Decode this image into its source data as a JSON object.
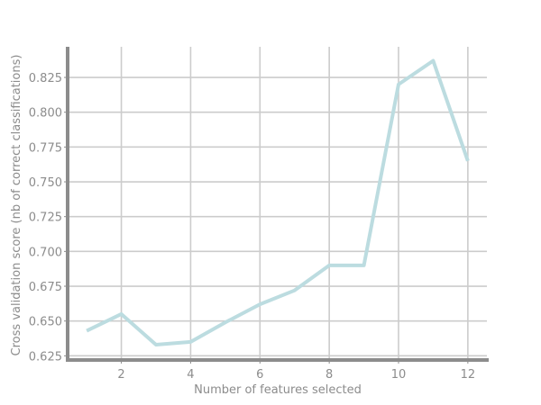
{
  "chart_data": {
    "type": "line",
    "xlabel": "Number of features selected",
    "ylabel": "Cross validation score (nb of correct classifications)",
    "x": [
      1,
      2,
      3,
      4,
      5,
      6,
      7,
      8,
      9,
      10,
      11,
      12
    ],
    "series": [
      {
        "values": [
          0.643,
          0.655,
          0.633,
          0.635,
          0.649,
          0.662,
          0.672,
          0.69,
          0.69,
          0.82,
          0.837,
          0.765
        ]
      }
    ],
    "xlim": [
      0.45,
      12.55
    ],
    "ylim": [
      0.622,
      0.847
    ],
    "xticks": [
      2,
      4,
      6,
      8,
      10,
      12
    ],
    "yticks": [
      0.625,
      0.65,
      0.675,
      0.7,
      0.725,
      0.75,
      0.775,
      0.8,
      0.825
    ],
    "ytick_labels": [
      "0.625",
      "0.650",
      "0.675",
      "0.700",
      "0.725",
      "0.750",
      "0.775",
      "0.800",
      "0.825"
    ],
    "grid": true,
    "colors": {
      "line": "#bcdce0",
      "grid": "#cccccc",
      "axis": "#8c8c8c",
      "text": "#8c8c8c"
    }
  }
}
